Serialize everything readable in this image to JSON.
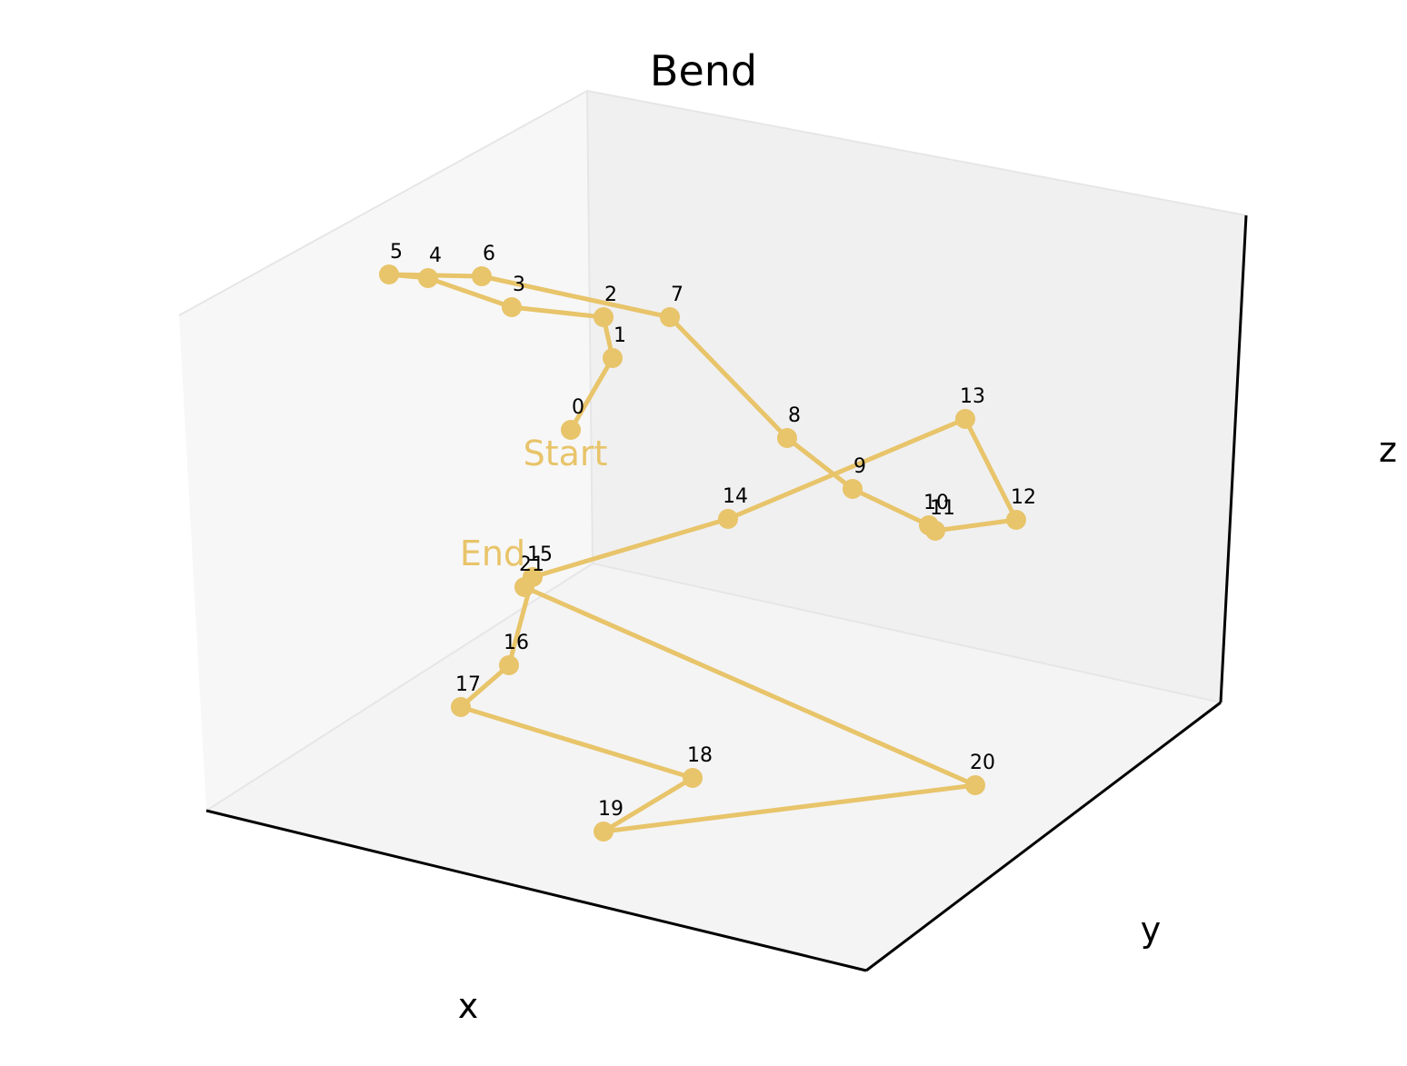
{
  "chart_data": {
    "type": "line3d",
    "title": "Bend",
    "xlabel": "x",
    "ylabel": "y",
    "zlabel": "z",
    "grid": false,
    "tick_labels_visible": false,
    "colors": {
      "series": "#E8C46A",
      "pane_left": "#F7F7F7",
      "pane_back": "#F0F0F0",
      "pane_floor": "#F4F4F4",
      "pane_edge": "#E6E6E6",
      "axis": "#000000"
    },
    "annotations": {
      "start": "Start",
      "end": "End"
    },
    "series": [
      {
        "marker": "circle",
        "points": [
          {
            "label": "0",
            "sx": 628,
            "sy": 473
          },
          {
            "label": "1",
            "sx": 674,
            "sy": 394
          },
          {
            "label": "2",
            "sx": 664,
            "sy": 349
          },
          {
            "label": "3",
            "sx": 563,
            "sy": 338
          },
          {
            "label": "4",
            "sx": 471,
            "sy": 306
          },
          {
            "label": "5",
            "sx": 428,
            "sy": 302
          },
          {
            "label": "6",
            "sx": 530,
            "sy": 304
          },
          {
            "label": "7",
            "sx": 737,
            "sy": 349
          },
          {
            "label": "8",
            "sx": 866,
            "sy": 482
          },
          {
            "label": "9",
            "sx": 938,
            "sy": 538
          },
          {
            "label": "10",
            "sx": 1022,
            "sy": 578
          },
          {
            "label": "11",
            "sx": 1029,
            "sy": 584
          },
          {
            "label": "12",
            "sx": 1118,
            "sy": 572
          },
          {
            "label": "13",
            "sx": 1062,
            "sy": 461
          },
          {
            "label": "14",
            "sx": 801,
            "sy": 571
          },
          {
            "label": "15",
            "sx": 586,
            "sy": 635
          },
          {
            "label": "16",
            "sx": 560,
            "sy": 732
          },
          {
            "label": "17",
            "sx": 507,
            "sy": 778
          },
          {
            "label": "18",
            "sx": 762,
            "sy": 856
          },
          {
            "label": "19",
            "sx": 664,
            "sy": 915
          },
          {
            "label": "20",
            "sx": 1073,
            "sy": 864
          },
          {
            "label": "21",
            "sx": 577,
            "sy": 646
          }
        ]
      }
    ]
  }
}
